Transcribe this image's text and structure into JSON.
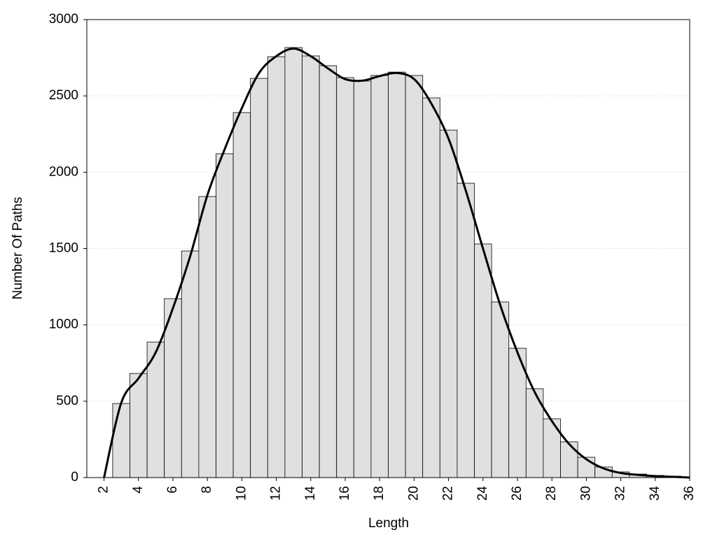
{
  "chart_data": {
    "type": "histogram",
    "xlabel": "Length",
    "ylabel": "Number Of Paths",
    "bins": [
      2.5,
      3.5,
      4.5,
      5.5,
      6.5,
      7.5,
      8.5,
      9.5,
      10.5,
      11.5,
      12.5,
      13.5,
      14.5,
      15.5,
      16.5,
      17.5,
      18.5,
      19.5,
      20.5,
      21.5,
      22.5,
      23.5,
      24.5,
      25.5,
      26.5,
      27.5,
      28.5,
      29.5,
      30.5,
      31.5,
      32.5,
      33.5,
      34.5,
      35.5
    ],
    "counts": [
      485,
      682,
      888,
      1172,
      1484,
      1841,
      2121,
      2391,
      2615,
      2757,
      2817,
      2762,
      2698,
      2620,
      2597,
      2634,
      2656,
      2634,
      2487,
      2276,
      1928,
      1530,
      1150,
      847,
      582,
      385,
      234,
      133,
      69,
      37,
      23,
      14,
      9
    ],
    "color": "#e0e0e0",
    "line": {
      "x": [
        2,
        3,
        4,
        5,
        6,
        7,
        8,
        9,
        10,
        11,
        12,
        13,
        14,
        15,
        16,
        17,
        18,
        19,
        20,
        21,
        22,
        23,
        24,
        25,
        26,
        27,
        28,
        29,
        30,
        31,
        32,
        33,
        34,
        35,
        36
      ],
      "values": [
        0,
        490,
        650,
        820,
        1110,
        1450,
        1850,
        2150,
        2420,
        2650,
        2760,
        2810,
        2760,
        2680,
        2610,
        2600,
        2630,
        2650,
        2610,
        2450,
        2220,
        1880,
        1500,
        1130,
        820,
        560,
        370,
        220,
        120,
        60,
        30,
        18,
        10,
        5,
        0
      ],
      "color": "#000000"
    },
    "xlim": [
      1,
      36
    ],
    "ylim": [
      0,
      3000
    ],
    "xticks": [
      2,
      4,
      6,
      8,
      10,
      12,
      14,
      16,
      18,
      20,
      22,
      24,
      26,
      28,
      30,
      32,
      34,
      36
    ],
    "yticks": [
      0,
      500,
      1000,
      1500,
      2000,
      2500,
      3000
    ],
    "grid": true
  }
}
